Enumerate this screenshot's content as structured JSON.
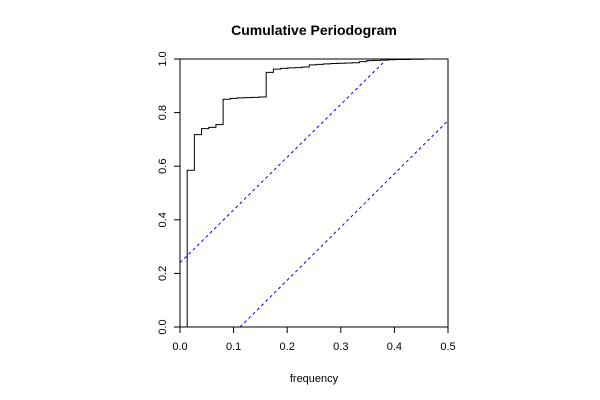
{
  "chart_data": {
    "type": "line",
    "title": "Cumulative Periodogram",
    "xlabel": "frequency",
    "ylabel": "",
    "xlim": [
      0,
      0.5
    ],
    "ylim": [
      0,
      1
    ],
    "grid": false,
    "legend": "none",
    "x_ticks": [
      {
        "value": 0.0,
        "label": "0.0"
      },
      {
        "value": 0.1,
        "label": "0.1"
      },
      {
        "value": 0.2,
        "label": "0.2"
      },
      {
        "value": 0.3,
        "label": "0.3"
      },
      {
        "value": 0.4,
        "label": "0.4"
      },
      {
        "value": 0.5,
        "label": "0.5"
      }
    ],
    "y_ticks": [
      {
        "value": 0.0,
        "label": "0.0"
      },
      {
        "value": 0.2,
        "label": "0.2"
      },
      {
        "value": 0.4,
        "label": "0.4"
      },
      {
        "value": 0.6,
        "label": "0.6"
      },
      {
        "value": 0.8,
        "label": "0.8"
      },
      {
        "value": 1.0,
        "label": "1.0"
      }
    ],
    "series": [
      {
        "style": "step",
        "color": "#000000",
        "x": [
          0.0134,
          0.0268,
          0.0402,
          0.0536,
          0.067,
          0.0804,
          0.0938,
          0.1072,
          0.1206,
          0.134,
          0.1474,
          0.1608,
          0.1742,
          0.1876,
          0.201,
          0.2144,
          0.2278,
          0.2412,
          0.2546,
          0.268,
          0.2814,
          0.2948,
          0.3082,
          0.3216,
          0.335,
          0.3484,
          0.3618,
          0.3752,
          0.3886,
          0.402,
          0.4154,
          0.4288,
          0.4422,
          0.4556,
          0.469,
          0.4824,
          0.5
        ],
        "y": [
          0.585,
          0.718,
          0.74,
          0.745,
          0.755,
          0.85,
          0.853,
          0.855,
          0.856,
          0.857,
          0.858,
          0.95,
          0.962,
          0.965,
          0.967,
          0.968,
          0.97,
          0.978,
          0.98,
          0.982,
          0.983,
          0.984,
          0.985,
          0.986,
          0.99,
          0.994,
          0.995,
          0.996,
          0.997,
          0.998,
          0.998,
          0.999,
          0.999,
          1.0,
          1.0,
          1.0,
          1.0
        ]
      },
      {
        "style": "dashed",
        "color": "#0000ff",
        "x": [
          0.0,
          0.386
        ],
        "y": [
          0.24,
          1.0
        ]
      },
      {
        "style": "dashed",
        "color": "#0000ff",
        "x": [
          0.112,
          0.5
        ],
        "y": [
          0.0,
          0.77
        ]
      }
    ]
  }
}
